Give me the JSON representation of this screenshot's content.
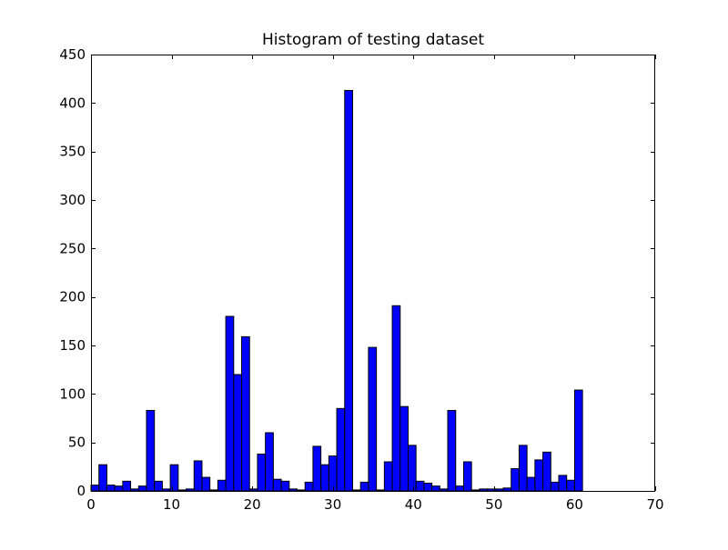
{
  "chart_data": {
    "type": "bar",
    "title": "Histogram of testing dataset",
    "xlabel": "",
    "ylabel": "",
    "xlim": [
      0,
      70
    ],
    "ylim": [
      0,
      450
    ],
    "x_ticks": [
      "0",
      "10",
      "20",
      "30",
      "40",
      "50",
      "60",
      "70"
    ],
    "y_ticks": [
      "0",
      "50",
      "100",
      "150",
      "200",
      "250",
      "300",
      "350",
      "400",
      "450"
    ],
    "bin_start": 0,
    "bin_width": 0.9836,
    "values": [
      6,
      27,
      6,
      5,
      10,
      2,
      5,
      83,
      10,
      2,
      27,
      1,
      2,
      31,
      14,
      1,
      11,
      180,
      120,
      159,
      2,
      38,
      60,
      12,
      10,
      2,
      1,
      9,
      46,
      27,
      36,
      85,
      413,
      1,
      9,
      148,
      1,
      30,
      191,
      87,
      47,
      10,
      8,
      5,
      2,
      83,
      5,
      30,
      1,
      2,
      2,
      2,
      3,
      23,
      47,
      14,
      32,
      40,
      9,
      16,
      11,
      104
    ],
    "bar_color": "#0000ff",
    "edge_color": "#000000",
    "grid": false,
    "legend": "none"
  }
}
